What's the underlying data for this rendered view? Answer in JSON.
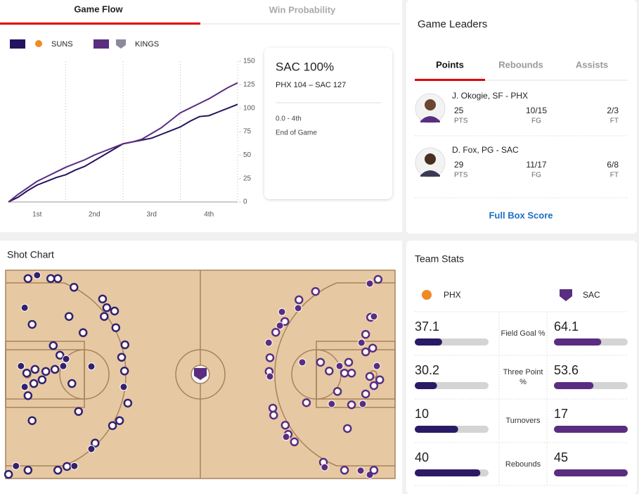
{
  "tabs": [
    "Game Flow",
    "Win Probability"
  ],
  "game_flow": {
    "type": "line",
    "x": [
      0,
      2,
      4,
      6,
      8,
      10,
      12,
      14,
      16,
      18,
      20,
      22,
      24,
      26,
      28,
      30,
      32,
      34,
      36,
      38,
      40,
      42,
      44,
      46,
      48
    ],
    "xlim": [
      0,
      48
    ],
    "ylim": [
      0,
      150
    ],
    "yticks": [
      0,
      25,
      50,
      75,
      100,
      125,
      150
    ],
    "periods": [
      "1st",
      "2nd",
      "3rd",
      "4th"
    ],
    "series": [
      {
        "name": "SUNS",
        "color": "#24135f",
        "values": [
          0,
          5,
          12,
          18,
          22,
          26,
          29,
          34,
          38,
          44,
          50,
          56,
          62,
          64,
          66,
          68,
          72,
          76,
          80,
          86,
          91,
          92,
          96,
          100,
          104
        ]
      },
      {
        "name": "KINGS",
        "color": "#5a2d81",
        "values": [
          0,
          8,
          15,
          22,
          27,
          32,
          37,
          41,
          45,
          50,
          54,
          58,
          62,
          64,
          67,
          73,
          79,
          87,
          95,
          100,
          105,
          110,
          116,
          122,
          127
        ]
      }
    ]
  },
  "summary": {
    "headline": "SAC 100%",
    "score": "PHX 104 – SAC 127",
    "clock": "0.0 - 4th",
    "status": "End of Game"
  },
  "game_leaders": {
    "title": "Game Leaders",
    "tabs": [
      "Points",
      "Rebounds",
      "Assists"
    ],
    "leaders": [
      {
        "name": "J. Okogie",
        "detail": "SF - PHX",
        "stats": [
          {
            "value": 25,
            "label": "PTS"
          },
          {
            "value": "10/15",
            "label": "FG"
          },
          {
            "value": "2/3",
            "label": "FT"
          }
        ]
      },
      {
        "name": "D. Fox",
        "detail": "PG - SAC",
        "stats": [
          {
            "value": 29,
            "label": "PTS"
          },
          {
            "value": "11/17",
            "label": "FG"
          },
          {
            "value": "6/8",
            "label": "FT"
          }
        ]
      }
    ],
    "link": "Full Box Score"
  },
  "shot_chart": {
    "title": "Shot Chart",
    "teams": [
      {
        "color": "#33206e",
        "shots": [
          [
            5.4,
            2.0,
            false
          ],
          [
            7.6,
            1.2,
            true
          ],
          [
            10.9,
            2.0,
            false
          ],
          [
            12.6,
            2.0,
            false
          ],
          [
            16.5,
            4.1,
            false
          ],
          [
            4.6,
            9.0,
            true
          ],
          [
            6.4,
            13.0,
            false
          ],
          [
            11.5,
            18.1,
            false
          ],
          [
            15.3,
            11.1,
            false
          ],
          [
            18.7,
            15.0,
            false
          ],
          [
            23.4,
            6.9,
            false
          ],
          [
            24.4,
            9.0,
            false
          ],
          [
            26.3,
            9.8,
            false
          ],
          [
            23.8,
            11.1,
            false
          ],
          [
            26.6,
            13.8,
            false
          ],
          [
            28.8,
            17.9,
            false
          ],
          [
            28.0,
            20.9,
            false
          ],
          [
            28.7,
            24.2,
            false
          ],
          [
            28.5,
            28.0,
            true
          ],
          [
            29.5,
            31.9,
            false
          ],
          [
            27.5,
            36.1,
            false
          ],
          [
            25.8,
            37.3,
            false
          ],
          [
            21.6,
            41.5,
            false
          ],
          [
            20.7,
            42.9,
            true
          ],
          [
            17.6,
            33.9,
            false
          ],
          [
            6.4,
            36.1,
            false
          ],
          [
            2.5,
            47.0,
            true
          ],
          [
            0.7,
            49.0,
            false
          ],
          [
            5.4,
            48.0,
            false
          ],
          [
            12.6,
            48.0,
            false
          ],
          [
            14.8,
            47.1,
            false
          ],
          [
            16.6,
            47.0,
            true
          ],
          [
            3.7,
            23.0,
            true
          ],
          [
            5.1,
            24.7,
            false
          ],
          [
            7.1,
            23.8,
            false
          ],
          [
            9.7,
            24.3,
            false
          ],
          [
            11.9,
            23.8,
            false
          ],
          [
            13.9,
            23.0,
            true
          ],
          [
            16.0,
            27.2,
            false
          ],
          [
            20.7,
            23.1,
            true
          ],
          [
            4.6,
            28.0,
            true
          ],
          [
            6.8,
            27.2,
            false
          ],
          [
            8.8,
            26.3,
            false
          ],
          [
            13.1,
            20.4,
            false
          ],
          [
            14.6,
            21.3,
            true
          ],
          [
            5.4,
            30.1,
            false
          ]
        ]
      },
      {
        "color": "#5a2d81",
        "shots": [
          [
            89.9,
            2.2,
            false
          ],
          [
            87.9,
            3.2,
            true
          ],
          [
            74.8,
            5.1,
            false
          ],
          [
            70.8,
            7.1,
            false
          ],
          [
            70.6,
            9.1,
            true
          ],
          [
            66.7,
            10.0,
            true
          ],
          [
            67.4,
            12.3,
            false
          ],
          [
            66.2,
            13.3,
            true
          ],
          [
            65.2,
            14.9,
            false
          ],
          [
            63.5,
            17.4,
            true
          ],
          [
            63.8,
            21.0,
            false
          ],
          [
            63.6,
            24.3,
            false
          ],
          [
            63.8,
            25.5,
            true
          ],
          [
            71.6,
            22.1,
            true
          ],
          [
            76.0,
            22.1,
            false
          ],
          [
            78.1,
            24.2,
            false
          ],
          [
            80.6,
            23.0,
            true
          ],
          [
            81.8,
            24.7,
            false
          ],
          [
            82.8,
            22.1,
            false
          ],
          [
            85.9,
            17.4,
            true
          ],
          [
            86.9,
            15.4,
            false
          ],
          [
            88.1,
            11.3,
            false
          ],
          [
            88.9,
            11.1,
            true
          ],
          [
            86.9,
            19.6,
            false
          ],
          [
            88.6,
            18.7,
            false
          ],
          [
            89.6,
            23.0,
            true
          ],
          [
            87.9,
            25.5,
            false
          ],
          [
            88.9,
            27.7,
            false
          ],
          [
            90.3,
            26.3,
            false
          ],
          [
            83.5,
            24.7,
            false
          ],
          [
            80.1,
            29.1,
            false
          ],
          [
            78.7,
            32.1,
            true
          ],
          [
            83.5,
            32.3,
            false
          ],
          [
            86.2,
            32.1,
            true
          ],
          [
            86.9,
            29.7,
            false
          ],
          [
            64.5,
            33.1,
            false
          ],
          [
            64.7,
            34.8,
            false
          ],
          [
            67.5,
            37.2,
            false
          ],
          [
            68.2,
            39.4,
            false
          ],
          [
            67.7,
            40.0,
            true
          ],
          [
            69.7,
            41.2,
            false
          ],
          [
            72.6,
            31.8,
            false
          ],
          [
            76.7,
            46.1,
            false
          ],
          [
            77.0,
            47.3,
            true
          ],
          [
            81.8,
            48.0,
            false
          ],
          [
            85.7,
            48.1,
            true
          ],
          [
            87.9,
            49.1,
            true
          ],
          [
            88.9,
            48.0,
            false
          ],
          [
            82.5,
            38.0,
            false
          ]
        ]
      }
    ]
  },
  "team_stats": {
    "title": "Team Stats",
    "teams": [
      "PHX",
      "SAC"
    ],
    "colors": [
      "#2a1a66",
      "#5a2d81"
    ],
    "rows": [
      {
        "label": "Field Goal %",
        "values": [
          37.1,
          64.1
        ],
        "scale": "percent"
      },
      {
        "label": "Three Point %",
        "values": [
          30.2,
          53.6
        ],
        "scale": "percent"
      },
      {
        "label": "Turnovers",
        "values": [
          10,
          17
        ],
        "scale": "relative"
      },
      {
        "label": "Rebounds",
        "values": [
          40,
          45
        ],
        "scale": "relative"
      }
    ]
  }
}
